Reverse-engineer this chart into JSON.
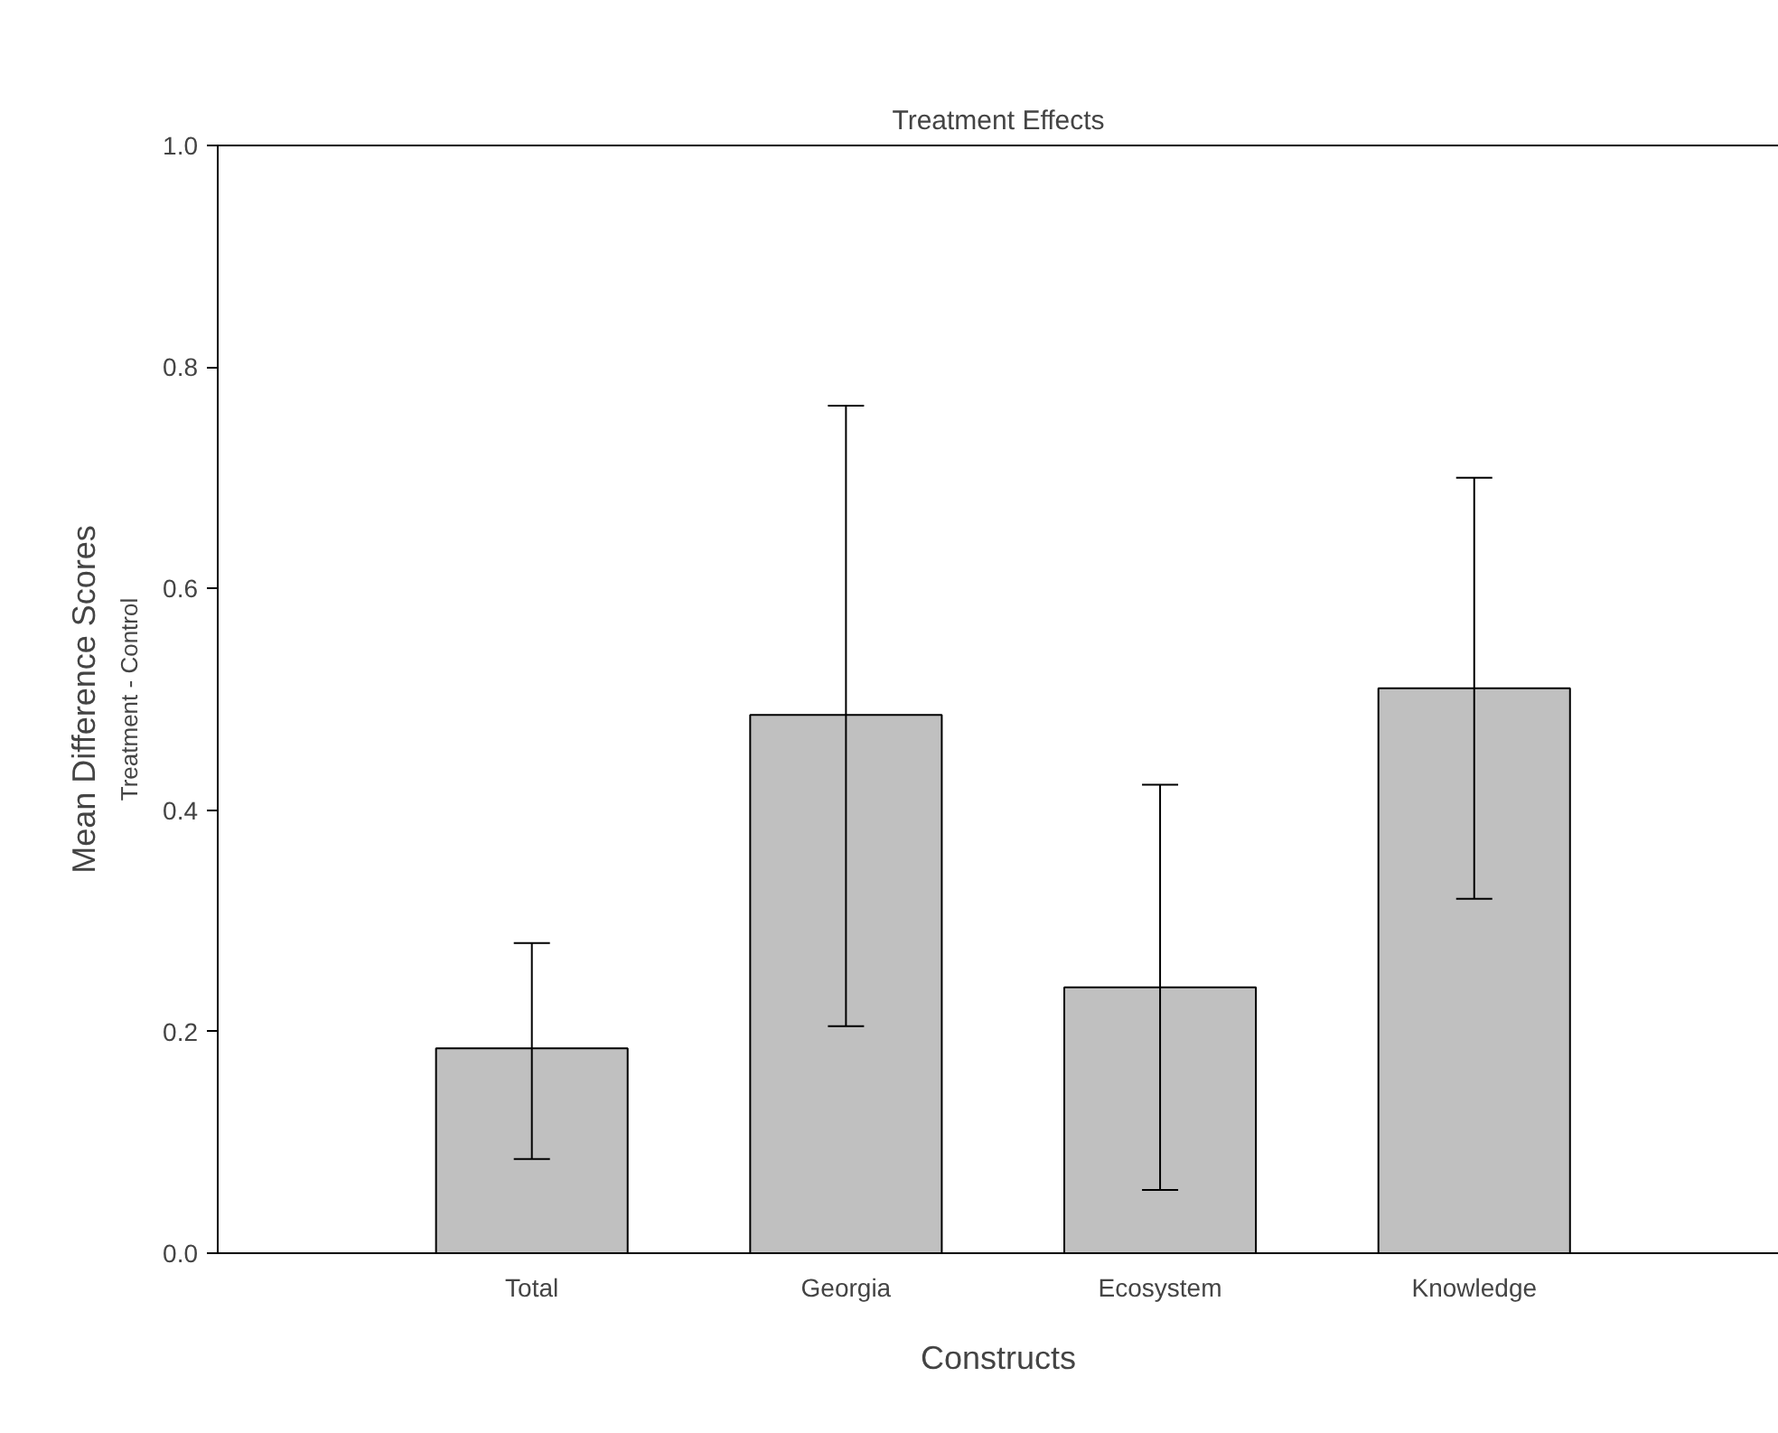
{
  "chart_data": {
    "type": "bar",
    "title": "Treatment Effects",
    "xlabel": "Constructs",
    "ylabel": "Mean Difference Scores",
    "annotations": [
      "Treatment - Control"
    ],
    "categories": [
      "Total",
      "Georgia",
      "Ecosystem",
      "Knowledge"
    ],
    "values": [
      0.185,
      0.486,
      0.24,
      0.51
    ],
    "errors": [
      [
        0.085,
        0.28
      ],
      [
        0.205,
        0.765
      ],
      [
        0.057,
        0.423
      ],
      [
        0.32,
        0.7
      ]
    ],
    "color": "#c0c0c0",
    "ylim": [
      0,
      1.0
    ],
    "yticks": [
      {
        "value": 0,
        "label": "0.0"
      },
      0.2,
      0.4,
      0.6,
      0.8,
      {
        "value": 1.0,
        "label": "1.0"
      }
    ],
    "grid": false
  }
}
